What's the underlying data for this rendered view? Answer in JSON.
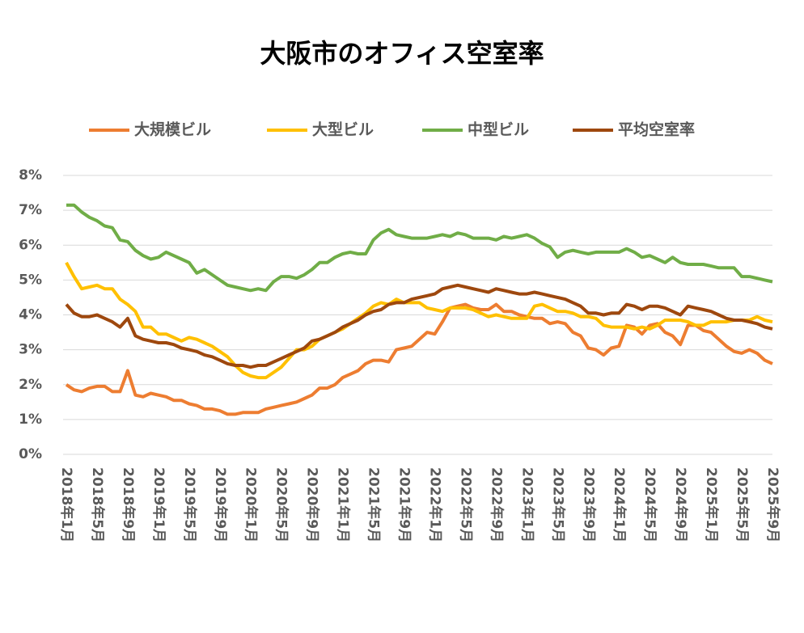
{
  "chart_data": {
    "type": "line",
    "title": "大阪市のオフィス空室率",
    "categories": [
      "2018年1月",
      null,
      null,
      null,
      "2018年5月",
      null,
      null,
      null,
      "2018年9月",
      null,
      null,
      null,
      "2019年1月",
      null,
      null,
      null,
      "2019年5月",
      null,
      null,
      null,
      "2019年9月",
      null,
      null,
      null,
      "2020年1月",
      null,
      null,
      null,
      "2020年5月",
      null,
      null,
      null,
      "2020年9月",
      null,
      null,
      null,
      "2021年1月",
      null,
      null,
      null,
      "2021年5月",
      null,
      null,
      null,
      "2021年9月",
      null,
      null,
      null,
      "2022年1月",
      null,
      null,
      null,
      "2022年5月",
      null,
      null,
      null,
      "2022年9月",
      null,
      null,
      null,
      "2023年1月",
      null,
      null,
      null,
      "2023年5月",
      null,
      null,
      null,
      "2023年9月",
      null,
      null,
      null,
      "2024年1月",
      null,
      null,
      null,
      "2024年5月",
      null,
      null,
      null,
      "2024年9月",
      null,
      null,
      null,
      "2025年1月",
      null,
      null,
      null,
      "2025年5月",
      null,
      null,
      null,
      "2025年9月"
    ],
    "series": [
      {
        "name": "大規模ビル",
        "color": "#ed7d31",
        "values": [
          2.0,
          1.85,
          1.8,
          1.9,
          1.95,
          1.95,
          1.8,
          1.8,
          2.4,
          1.7,
          1.65,
          1.75,
          1.7,
          1.65,
          1.55,
          1.55,
          1.45,
          1.4,
          1.3,
          1.3,
          1.25,
          1.15,
          1.15,
          1.2,
          1.2,
          1.2,
          1.3,
          1.35,
          1.4,
          1.45,
          1.5,
          1.6,
          1.7,
          1.9,
          1.9,
          2.0,
          2.2,
          2.3,
          2.4,
          2.6,
          2.7,
          2.7,
          2.65,
          3.0,
          3.05,
          3.1,
          3.3,
          3.5,
          3.45,
          3.8,
          4.2,
          4.25,
          4.3,
          4.2,
          4.15,
          4.15,
          4.3,
          4.1,
          4.1,
          4.0,
          3.95,
          3.9,
          3.9,
          3.75,
          3.8,
          3.75,
          3.5,
          3.4,
          3.05,
          3.0,
          2.85,
          3.05,
          3.1,
          3.7,
          3.65,
          3.45,
          3.7,
          3.75,
          3.5,
          3.4,
          3.15,
          3.7,
          3.7,
          3.55,
          3.5,
          3.3,
          3.1,
          2.95,
          2.9,
          3.0,
          2.9,
          2.7,
          2.6
        ]
      },
      {
        "name": "大型ビル",
        "color": "#ffc000",
        "values": [
          5.5,
          5.1,
          4.75,
          4.8,
          4.85,
          4.75,
          4.75,
          4.45,
          4.3,
          4.1,
          3.65,
          3.65,
          3.45,
          3.45,
          3.35,
          3.25,
          3.35,
          3.3,
          3.2,
          3.1,
          2.95,
          2.8,
          2.55,
          2.35,
          2.25,
          2.2,
          2.2,
          2.35,
          2.5,
          2.75,
          3.0,
          3.0,
          3.1,
          3.3,
          3.4,
          3.5,
          3.6,
          3.75,
          3.9,
          4.05,
          4.25,
          4.35,
          4.3,
          4.45,
          4.35,
          4.35,
          4.35,
          4.2,
          4.15,
          4.1,
          4.2,
          4.2,
          4.2,
          4.15,
          4.05,
          3.95,
          4.0,
          3.95,
          3.9,
          3.9,
          3.9,
          4.25,
          4.3,
          4.2,
          4.1,
          4.1,
          4.05,
          3.95,
          3.95,
          3.9,
          3.7,
          3.65,
          3.65,
          3.65,
          3.6,
          3.65,
          3.6,
          3.7,
          3.85,
          3.85,
          3.85,
          3.8,
          3.7,
          3.7,
          3.8,
          3.8,
          3.8,
          3.85,
          3.85,
          3.85,
          3.95,
          3.85,
          3.8
        ]
      },
      {
        "name": "中型ビル",
        "color": "#70ad47",
        "values": [
          7.15,
          7.15,
          6.95,
          6.8,
          6.7,
          6.55,
          6.5,
          6.15,
          6.1,
          5.85,
          5.7,
          5.6,
          5.65,
          5.8,
          5.7,
          5.6,
          5.5,
          5.2,
          5.3,
          5.15,
          5.0,
          4.85,
          4.8,
          4.75,
          4.7,
          4.75,
          4.7,
          4.95,
          5.1,
          5.1,
          5.05,
          5.15,
          5.3,
          5.5,
          5.5,
          5.65,
          5.75,
          5.8,
          5.75,
          5.75,
          6.15,
          6.35,
          6.45,
          6.3,
          6.25,
          6.2,
          6.2,
          6.2,
          6.25,
          6.3,
          6.25,
          6.35,
          6.3,
          6.2,
          6.2,
          6.2,
          6.15,
          6.25,
          6.2,
          6.25,
          6.3,
          6.2,
          6.05,
          5.95,
          5.65,
          5.8,
          5.85,
          5.8,
          5.75,
          5.8,
          5.8,
          5.8,
          5.8,
          5.9,
          5.8,
          5.65,
          5.7,
          5.6,
          5.5,
          5.65,
          5.5,
          5.45,
          5.45,
          5.45,
          5.4,
          5.35,
          5.35,
          5.35,
          5.1,
          5.1,
          5.05,
          5.0,
          4.95
        ]
      },
      {
        "name": "平均空室率",
        "color": "#9e480e",
        "values": [
          4.3,
          4.05,
          3.95,
          3.95,
          4.0,
          3.9,
          3.8,
          3.65,
          3.9,
          3.4,
          3.3,
          3.25,
          3.2,
          3.2,
          3.15,
          3.05,
          3.0,
          2.95,
          2.85,
          2.8,
          2.7,
          2.6,
          2.55,
          2.55,
          2.5,
          2.55,
          2.55,
          2.65,
          2.75,
          2.85,
          2.95,
          3.05,
          3.25,
          3.3,
          3.4,
          3.5,
          3.65,
          3.75,
          3.85,
          4.0,
          4.1,
          4.15,
          4.3,
          4.35,
          4.35,
          4.45,
          4.5,
          4.55,
          4.6,
          4.75,
          4.8,
          4.85,
          4.8,
          4.75,
          4.7,
          4.65,
          4.75,
          4.7,
          4.65,
          4.6,
          4.6,
          4.65,
          4.6,
          4.55,
          4.5,
          4.45,
          4.35,
          4.25,
          4.05,
          4.05,
          4.0,
          4.05,
          4.05,
          4.3,
          4.25,
          4.15,
          4.25,
          4.25,
          4.2,
          4.1,
          4.0,
          4.25,
          4.2,
          4.15,
          4.1,
          4.0,
          3.9,
          3.85,
          3.85,
          3.8,
          3.75,
          3.65,
          3.6
        ]
      }
    ],
    "ylim": [
      0,
      8
    ],
    "yticks": [
      {
        "value": 0,
        "label": "0%"
      },
      {
        "value": 1,
        "label": "1%"
      },
      {
        "value": 2,
        "label": "2%"
      },
      {
        "value": 3,
        "label": "3%"
      },
      {
        "value": 4,
        "label": "4%"
      },
      {
        "value": 5,
        "label": "5%"
      },
      {
        "value": 6,
        "label": "6%"
      },
      {
        "value": 7,
        "label": "7%"
      },
      {
        "value": 8,
        "label": "8%"
      }
    ],
    "grid": true,
    "legend": "top"
  }
}
